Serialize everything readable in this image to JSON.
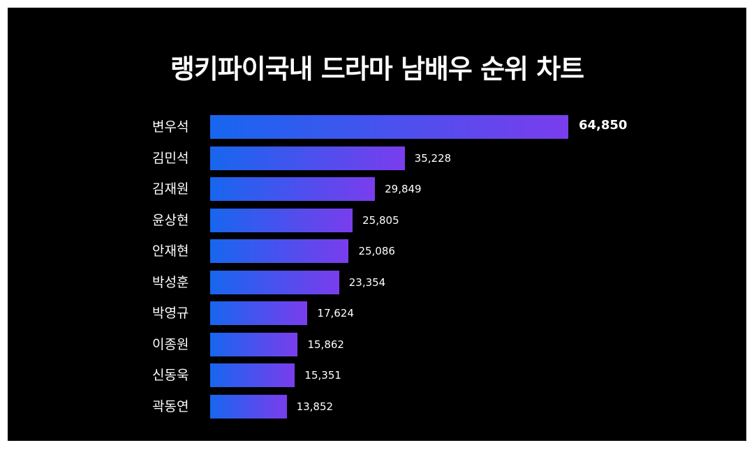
{
  "chart_data": {
    "type": "bar",
    "orientation": "horizontal",
    "title": "랭키파이국내 드라마 남배우 순위 차트",
    "categories": [
      "변우석",
      "김민석",
      "김재원",
      "윤상현",
      "안재현",
      "박성훈",
      "박영규",
      "이종원",
      "신동욱",
      "곽동연"
    ],
    "values": [
      64850,
      35228,
      29849,
      25805,
      25086,
      23354,
      17624,
      15862,
      15351,
      13852
    ],
    "value_labels": [
      "64,850",
      "35,228",
      "29,849",
      "25,805",
      "25,086",
      "23,354",
      "17,624",
      "15,862",
      "15,351",
      "13,852"
    ],
    "xlabel": "",
    "ylabel": "",
    "xlim": [
      0,
      64850
    ],
    "grid": false,
    "colors": {
      "bar_start": "#1766ee",
      "bar_end": "#7a3ded",
      "background": "#000000",
      "text": "#ffffff"
    }
  }
}
